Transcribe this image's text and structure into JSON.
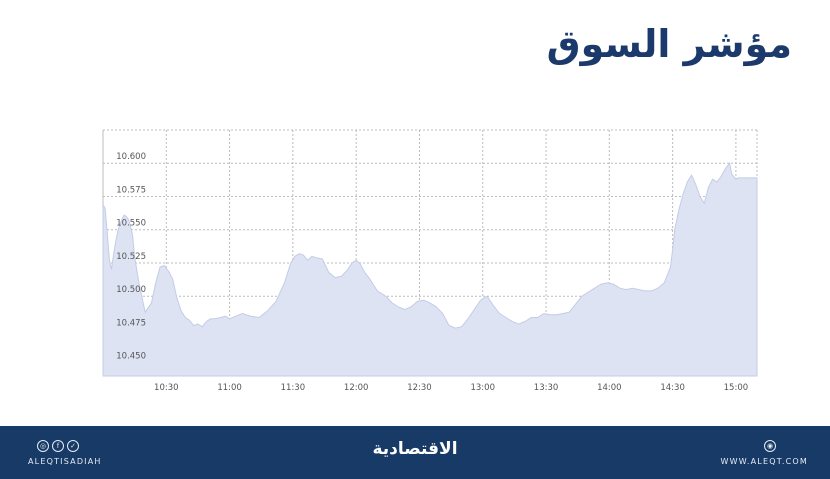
{
  "page_title": "مؤشر السوق",
  "chart_data": {
    "type": "area",
    "title": "مؤشر السوق",
    "xlabel": "",
    "ylabel": "",
    "x_ticks": [
      "10:30",
      "11:00",
      "11:30",
      "12:00",
      "12:30",
      "13:00",
      "13:30",
      "14:00",
      "14:30",
      "15:00"
    ],
    "y_ticks": [
      "10.600",
      "10.575",
      "10.550",
      "10.525",
      "10.500",
      "10.475",
      "10.450"
    ],
    "xlim": [
      "10:00",
      "15:10"
    ],
    "ylim": [
      10.44,
      10.625
    ],
    "grid": true,
    "colors": {
      "fill": "#dde3f3",
      "line": "#c4cce6",
      "grid": "#bcbcbc"
    },
    "series": [
      {
        "x": [
          "10:00",
          "10:01",
          "10:02",
          "10:03",
          "10:04",
          "10:05",
          "10:06",
          "10:07",
          "10:08",
          "10:09",
          "10:10",
          "10:11",
          "10:12",
          "10:13",
          "10:14",
          "10:15",
          "10:17",
          "10:20",
          "10:23",
          "10:25",
          "10:27",
          "10:29",
          "10:31",
          "10:33",
          "10:35",
          "10:37",
          "10:39",
          "10:41",
          "10:43",
          "10:45",
          "10:47",
          "10:49",
          "10:51",
          "10:53",
          "10:56",
          "10:58",
          "11:00",
          "11:03",
          "11:06",
          "11:10",
          "11:14",
          "11:18",
          "11:22",
          "11:26",
          "11:29",
          "11:31",
          "11:33",
          "11:35",
          "11:37",
          "11:39",
          "11:41",
          "11:44",
          "11:47",
          "11:50",
          "11:53",
          "11:56",
          "11:58",
          "12:00",
          "12:02",
          "12:04",
          "12:06",
          "12:08",
          "12:10",
          "12:12",
          "12:14",
          "12:17",
          "12:20",
          "12:23",
          "12:26",
          "12:29",
          "12:32",
          "12:35",
          "12:38",
          "12:41",
          "12:44",
          "12:47",
          "12:50",
          "12:53",
          "12:56",
          "12:59",
          "13:02",
          "13:05",
          "13:08",
          "13:11",
          "13:14",
          "13:17",
          "13:20",
          "13:23",
          "13:26",
          "13:29",
          "13:32",
          "13:35",
          "13:38",
          "13:41",
          "13:44",
          "13:47",
          "13:50",
          "13:53",
          "13:56",
          "13:59",
          "14:02",
          "14:05",
          "14:08",
          "14:11",
          "14:14",
          "14:17",
          "14:20",
          "14:23",
          "14:26",
          "14:29",
          "14:30",
          "14:31",
          "14:33",
          "14:35",
          "14:37",
          "14:39",
          "14:41",
          "14:43",
          "14:45",
          "14:47",
          "14:49",
          "14:51",
          "14:53",
          "14:55",
          "14:57",
          "14:58",
          "15:00",
          "15:01",
          "15:03",
          "15:06",
          "15:10"
        ],
        "values": [
          10.569,
          10.566,
          10.548,
          10.528,
          10.52,
          10.531,
          10.541,
          10.549,
          10.554,
          10.558,
          10.561,
          10.56,
          10.558,
          10.553,
          10.546,
          10.53,
          10.51,
          10.488,
          10.495,
          10.51,
          10.522,
          10.523,
          10.519,
          10.513,
          10.499,
          10.489,
          10.484,
          10.482,
          10.478,
          10.479,
          10.477,
          10.481,
          10.483,
          10.483,
          10.484,
          10.485,
          10.483,
          10.485,
          10.487,
          10.485,
          10.484,
          10.489,
          10.496,
          10.51,
          10.525,
          10.53,
          10.532,
          10.531,
          10.527,
          10.53,
          10.529,
          10.528,
          10.518,
          10.514,
          10.515,
          10.52,
          10.525,
          10.527,
          10.524,
          10.518,
          10.514,
          10.509,
          10.504,
          10.502,
          10.5,
          10.495,
          10.492,
          10.49,
          10.492,
          10.496,
          10.497,
          10.495,
          10.492,
          10.487,
          10.478,
          10.476,
          10.477,
          10.483,
          10.49,
          10.497,
          10.5,
          10.493,
          10.487,
          10.484,
          10.481,
          10.479,
          10.481,
          10.484,
          10.484,
          10.487,
          10.486,
          10.486,
          10.487,
          10.488,
          10.494,
          10.5,
          10.503,
          10.506,
          10.509,
          10.51,
          10.509,
          10.506,
          10.505,
          10.506,
          10.505,
          10.504,
          10.504,
          10.506,
          10.51,
          10.522,
          10.535,
          10.55,
          10.565,
          10.577,
          10.586,
          10.591,
          10.584,
          10.575,
          10.57,
          10.582,
          10.588,
          10.586,
          10.59,
          10.596,
          10.6,
          10.592,
          10.588,
          10.589,
          10.589,
          10.589,
          10.589
        ]
      }
    ]
  },
  "footer": {
    "brand": "الاقتصادية",
    "handle": "ALEQTISADIAH",
    "site": "WWW.ALEQT.COM",
    "social_icons": [
      "instagram-icon",
      "facebook-icon",
      "twitter-icon"
    ],
    "site_icon": "globe-icon"
  }
}
